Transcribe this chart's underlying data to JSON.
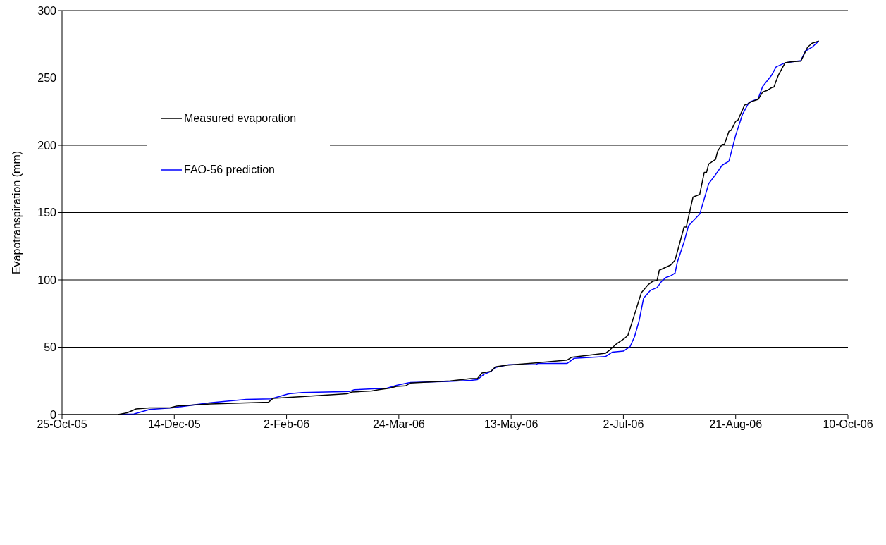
{
  "chart_data": {
    "type": "line",
    "ylabel": "Evapotranspiration (mm)",
    "xlim": [
      "2005-10-25",
      "2006-10-10"
    ],
    "xticks": [
      {
        "value": "2005-10-25",
        "label": "25-Oct-05"
      },
      {
        "value": "2005-12-14",
        "label": "14-Dec-05"
      },
      {
        "value": "2006-02-02",
        "label": "2-Feb-06"
      },
      {
        "value": "2006-03-24",
        "label": "24-Mar-06"
      },
      {
        "value": "2006-05-13",
        "label": "13-May-06"
      },
      {
        "value": "2006-07-02",
        "label": "2-Jul-06"
      },
      {
        "value": "2006-08-21",
        "label": "21-Aug-06"
      },
      {
        "value": "2006-10-10",
        "label": "10-Oct-06"
      }
    ],
    "ylim": [
      0,
      300
    ],
    "yticks": [
      0,
      50,
      100,
      150,
      200,
      250,
      300
    ],
    "grid": "y",
    "legend": "top left",
    "marker": "none",
    "line_style": "solid",
    "series": [
      {
        "name": "Measured evaporation",
        "color": "#000000",
        "x": [
          "2005-11-19",
          "2005-11-23",
          "2005-11-27",
          "2005-12-03",
          "2005-12-12",
          "2005-12-15",
          "2005-12-22",
          "2005-12-30",
          "2006-01-25",
          "2006-01-27",
          "2006-02-09",
          "2006-03-01",
          "2006-03-03",
          "2006-03-12",
          "2006-03-15",
          "2006-03-20",
          "2006-03-23",
          "2006-03-27",
          "2006-03-29",
          "2006-04-16",
          "2006-04-25",
          "2006-04-28",
          "2006-04-30",
          "2006-05-04",
          "2006-05-06",
          "2006-05-11",
          "2006-05-24",
          "2006-06-07",
          "2006-06-09",
          "2006-06-24",
          "2006-06-26",
          "2006-06-29",
          "2006-07-02",
          "2006-07-04",
          "2006-07-06",
          "2006-07-10",
          "2006-07-13",
          "2006-07-15",
          "2006-07-17",
          "2006-07-18",
          "2006-07-23",
          "2006-07-25",
          "2006-07-27",
          "2006-07-29",
          "2006-07-30",
          "2006-08-02",
          "2006-08-05",
          "2006-08-07",
          "2006-08-08",
          "2006-08-09",
          "2006-08-12",
          "2006-08-13",
          "2006-08-15",
          "2006-08-16",
          "2006-08-18",
          "2006-08-19",
          "2006-08-21",
          "2006-08-22",
          "2006-08-25",
          "2006-08-26",
          "2006-08-28",
          "2006-08-31",
          "2006-09-02",
          "2006-09-04",
          "2006-09-06",
          "2006-09-07",
          "2006-09-09",
          "2006-09-12",
          "2006-09-15",
          "2006-09-19",
          "2006-09-22",
          "2006-09-24",
          "2006-09-27"
        ],
        "values": [
          0,
          1.3,
          4.2,
          5.0,
          5.0,
          6.3,
          7.1,
          7.9,
          9.2,
          12.1,
          13.4,
          15.4,
          16.7,
          17.5,
          18.4,
          19.6,
          20.9,
          21.3,
          23.4,
          25.0,
          26.7,
          26.7,
          30.9,
          32.1,
          35.5,
          36.7,
          38.4,
          40.5,
          42.6,
          45.5,
          48.0,
          52.6,
          55.9,
          58.8,
          69.3,
          90.5,
          96.4,
          98.9,
          99.7,
          107.2,
          111.0,
          114.7,
          126.8,
          139.3,
          139.3,
          161.5,
          163.5,
          179.8,
          179.8,
          186.1,
          189.4,
          195.7,
          200.7,
          200.7,
          210.3,
          211.1,
          217.8,
          218.6,
          229.9,
          230.3,
          232.4,
          234.0,
          239.5,
          240.7,
          242.8,
          243.2,
          252.0,
          261.2,
          262.0,
          262.4,
          272.8,
          275.8,
          277.4
        ]
      },
      {
        "name": "FAO-56 prediction",
        "color": "#0000ff",
        "x": [
          "2005-11-19",
          "2005-11-26",
          "2005-12-03",
          "2005-12-13",
          "2005-12-30",
          "2006-01-15",
          "2006-01-26",
          "2006-02-03",
          "2006-02-09",
          "2006-03-02",
          "2006-03-04",
          "2006-03-14",
          "2006-03-18",
          "2006-03-23",
          "2006-03-29",
          "2006-04-15",
          "2006-04-25",
          "2006-04-28",
          "2006-05-01",
          "2006-05-04",
          "2006-05-06",
          "2006-05-12",
          "2006-05-24",
          "2006-05-25",
          "2006-06-07",
          "2006-06-10",
          "2006-06-14",
          "2006-06-24",
          "2006-06-27",
          "2006-07-02",
          "2006-07-05",
          "2006-07-07",
          "2006-07-09",
          "2006-07-11",
          "2006-07-14",
          "2006-07-17",
          "2006-07-19",
          "2006-07-21",
          "2006-07-23",
          "2006-07-25",
          "2006-07-26",
          "2006-07-29",
          "2006-07-31",
          "2006-08-05",
          "2006-08-09",
          "2006-08-12",
          "2006-08-15",
          "2006-08-18",
          "2006-08-21",
          "2006-08-24",
          "2006-08-27",
          "2006-08-31",
          "2006-09-02",
          "2006-09-06",
          "2006-09-08",
          "2006-09-12",
          "2006-09-19",
          "2006-09-21",
          "2006-09-24",
          "2006-09-27"
        ],
        "values": [
          0,
          0.4,
          3.8,
          5.0,
          8.8,
          11.3,
          11.7,
          15.4,
          16.3,
          17.1,
          18.4,
          19.2,
          19.2,
          21.7,
          23.8,
          24.6,
          25.4,
          25.9,
          30.0,
          32.1,
          35.0,
          37.1,
          37.1,
          38.0,
          38.0,
          41.7,
          42.1,
          43.0,
          46.3,
          47.1,
          50.5,
          58.0,
          69.7,
          86.4,
          92.2,
          94.3,
          98.9,
          101.8,
          103.0,
          105.1,
          113.1,
          128.1,
          140.2,
          148.9,
          171.5,
          178.1,
          185.2,
          188.2,
          207.4,
          222.8,
          232.0,
          234.5,
          243.6,
          252.0,
          258.2,
          261.2,
          262.8,
          269.9,
          272.8,
          277.4
        ]
      }
    ]
  }
}
